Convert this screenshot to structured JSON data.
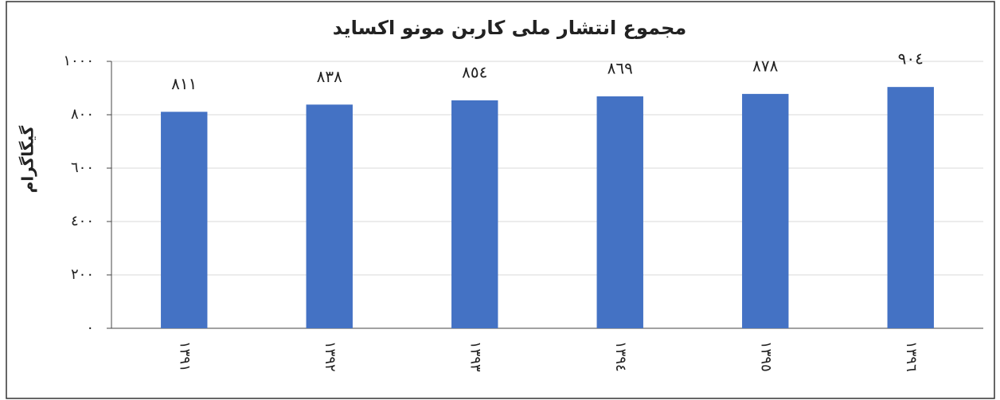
{
  "chart_data": {
    "type": "bar",
    "title": "مجموع انتشار ملی کاربن مونو اکساید",
    "y_label": "گیگاگرام",
    "categories": [
      "١٣٩١",
      "١٣٩٢",
      "١٣٩٣",
      "١٣٩٤",
      "١٣٩٥",
      "١٣٩٦"
    ],
    "values": [
      811,
      838,
      854,
      869,
      878,
      904
    ],
    "value_labels": [
      "٨١١",
      "٨٣٨",
      "٨٥٤",
      "٨٦٩",
      "٨٧٨",
      "٩٠٤"
    ],
    "color": "#4472c4",
    "ylim": [
      0,
      1000
    ],
    "yticks": [
      {
        "value": 0,
        "label": "٠"
      },
      {
        "value": 200,
        "label": "٢٠٠"
      },
      {
        "value": 400,
        "label": "٤٠٠"
      },
      {
        "value": 600,
        "label": "٦٠٠"
      },
      {
        "value": 800,
        "label": "٨٠٠"
      },
      {
        "value": 1000,
        "label": "١٠٠٠"
      }
    ],
    "grid": true
  }
}
